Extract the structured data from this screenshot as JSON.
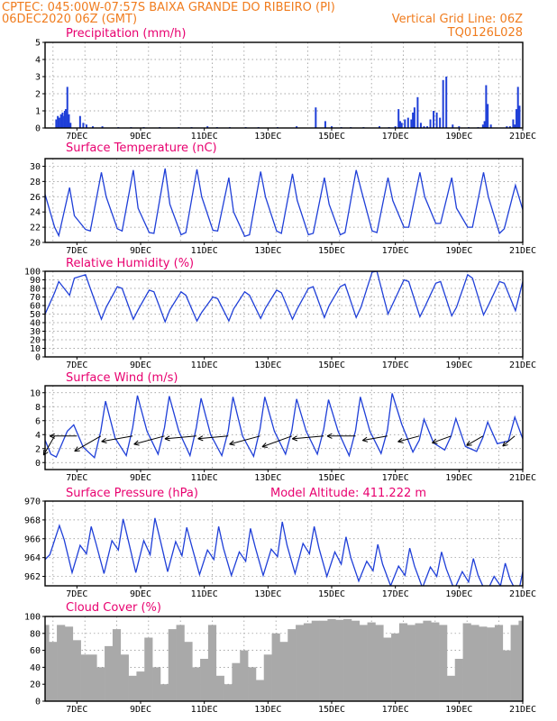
{
  "header": {
    "line1": "CPTEC:   045:00W-07:57S   BAIXA GRANDE DO RIBEIRO (PI)",
    "line2_left": "06DEC2020 06Z (GMT)",
    "line2_right": "Vertical Grid Line: 06Z",
    "line3_right": "TQ0126L028"
  },
  "colors": {
    "header": "#f07c1e",
    "title": "#e8006f",
    "line": "#1f3fd8",
    "bar": "#1f3fd8",
    "cloud": "#a9a9a9"
  },
  "x_axis": {
    "days_range": [
      0,
      15
    ],
    "tick_days": [
      1,
      3,
      5,
      7,
      9,
      11,
      13,
      15
    ],
    "tick_labels": [
      "7DEC",
      "9DEC",
      "11DEC",
      "13DEC",
      "15DEC",
      "17DEC",
      "19DEC",
      "21DEC"
    ],
    "grid": "vertical dotted at 06Z each day"
  },
  "chart_data": [
    {
      "id": "precip",
      "type": "bar",
      "title": "Precipitation (mm/h)",
      "ylim": [
        0,
        5
      ],
      "yticks": [
        0,
        1,
        2,
        3,
        4,
        5
      ],
      "grid": true,
      "x": [
        0.35,
        0.4,
        0.45,
        0.5,
        0.55,
        0.6,
        0.62,
        0.65,
        0.7,
        0.75,
        0.8,
        1.1,
        1.2,
        1.3,
        1.5,
        1.8,
        2.3,
        2.7,
        3.1,
        3.6,
        4.2,
        4.6,
        5.1,
        5.4,
        5.8,
        6.3,
        6.7,
        7.3,
        7.9,
        8.5,
        8.8,
        9.0,
        9.3,
        9.6,
        10.0,
        10.5,
        10.8,
        11.0,
        11.1,
        11.15,
        11.2,
        11.3,
        11.4,
        11.5,
        11.55,
        11.6,
        11.7,
        11.8,
        11.9,
        12.0,
        12.1,
        12.2,
        12.3,
        12.4,
        12.5,
        12.6,
        12.8,
        13.0,
        13.3,
        13.6,
        13.75,
        13.8,
        13.85,
        13.9,
        14.0,
        14.5,
        14.6,
        14.7,
        14.75,
        14.8,
        14.85,
        14.9
      ],
      "values": [
        0.5,
        0.7,
        0.6,
        0.8,
        0.9,
        0.7,
        1.0,
        1.1,
        2.4,
        0.8,
        0.3,
        0.7,
        0.3,
        0.2,
        0.1,
        0.1,
        0.05,
        0.05,
        0.05,
        0.05,
        0.05,
        0.05,
        0.1,
        0.05,
        0.05,
        0.05,
        0.05,
        0.05,
        0.1,
        1.2,
        0.4,
        0.1,
        0.05,
        0.05,
        0.05,
        0.1,
        0.05,
        0.1,
        1.1,
        0.4,
        0.3,
        0.5,
        0.6,
        0.5,
        0.9,
        1.2,
        1.8,
        0.3,
        0.1,
        0.1,
        0.5,
        1.0,
        0.9,
        0.6,
        2.8,
        3.0,
        0.2,
        0.1,
        0.05,
        0.05,
        0.2,
        0.4,
        2.5,
        1.4,
        0.2,
        0.1,
        0.1,
        0.5,
        0.2,
        1.1,
        2.4,
        1.3
      ]
    },
    {
      "id": "temp",
      "type": "line",
      "title": "Surface Temperature (nC)",
      "ylim": [
        20,
        31
      ],
      "yticks": [
        20,
        22,
        24,
        26,
        28,
        30
      ],
      "grid": true,
      "x": [
        0.0,
        0.3,
        0.43,
        0.77,
        0.92,
        1.27,
        1.42,
        1.77,
        1.92,
        2.27,
        2.42,
        2.77,
        2.92,
        3.27,
        3.42,
        3.77,
        3.92,
        4.27,
        4.42,
        4.77,
        4.92,
        5.27,
        5.42,
        5.77,
        5.92,
        6.27,
        6.42,
        6.77,
        6.92,
        7.27,
        7.42,
        7.77,
        7.92,
        8.27,
        8.42,
        8.77,
        8.92,
        9.27,
        9.42,
        9.77,
        9.92,
        10.27,
        10.42,
        10.77,
        10.92,
        11.27,
        11.42,
        11.77,
        11.92,
        12.27,
        12.42,
        12.77,
        12.92,
        13.27,
        13.42,
        13.77,
        13.92,
        14.27,
        14.42,
        14.77,
        15.0
      ],
      "y": [
        26.3,
        22.0,
        20.9,
        27.2,
        23.5,
        21.7,
        21.5,
        29.2,
        26.0,
        21.8,
        21.5,
        29.5,
        24.5,
        21.3,
        21.2,
        29.7,
        25.0,
        21.0,
        21.3,
        29.6,
        26.0,
        21.6,
        21.5,
        28.5,
        24.0,
        20.8,
        21.0,
        29.3,
        26.0,
        21.5,
        21.2,
        29.0,
        25.5,
        21.0,
        21.2,
        28.5,
        25.0,
        21.0,
        21.3,
        29.5,
        27.0,
        21.5,
        21.3,
        28.5,
        25.5,
        22.0,
        22.0,
        29.2,
        26.0,
        22.5,
        22.5,
        28.5,
        24.5,
        22.0,
        22.0,
        29.2,
        26.0,
        21.2,
        21.8,
        27.5,
        24.3
      ]
    },
    {
      "id": "rh",
      "type": "line",
      "title": "Relative Humidity (%)",
      "ylim": [
        0,
        100
      ],
      "yticks": [
        0,
        10,
        20,
        30,
        40,
        50,
        60,
        70,
        80,
        90,
        100
      ],
      "grid": true,
      "x": [
        0.0,
        0.3,
        0.43,
        0.77,
        0.92,
        1.27,
        1.42,
        1.77,
        1.92,
        2.27,
        2.42,
        2.77,
        2.92,
        3.27,
        3.42,
        3.77,
        3.92,
        4.27,
        4.42,
        4.77,
        4.92,
        5.27,
        5.42,
        5.77,
        5.92,
        6.27,
        6.42,
        6.77,
        6.92,
        7.27,
        7.42,
        7.77,
        7.92,
        8.27,
        8.42,
        8.77,
        8.92,
        9.27,
        9.42,
        9.77,
        9.92,
        10.27,
        10.42,
        10.77,
        10.92,
        11.27,
        11.42,
        11.77,
        11.92,
        12.27,
        12.42,
        12.77,
        12.92,
        13.27,
        13.42,
        13.77,
        13.92,
        14.27,
        14.42,
        14.77,
        15.0
      ],
      "y": [
        50,
        75,
        88,
        72,
        92,
        96,
        80,
        44,
        58,
        82,
        80,
        44,
        55,
        78,
        76,
        41,
        55,
        76,
        72,
        42,
        52,
        70,
        68,
        42,
        56,
        76,
        72,
        45,
        57,
        78,
        75,
        44,
        56,
        80,
        82,
        46,
        60,
        82,
        85,
        46,
        58,
        99,
        100,
        50,
        62,
        90,
        88,
        47,
        58,
        86,
        88,
        48,
        58,
        96,
        92,
        49,
        60,
        88,
        86,
        54,
        88
      ]
    },
    {
      "id": "wind",
      "type": "line",
      "title": "Surface Wind (m/s)",
      "ylim": [
        -1,
        11
      ],
      "yticks": [
        0,
        2,
        4,
        6,
        8,
        10
      ],
      "grid": true,
      "x": [
        0.0,
        0.18,
        0.35,
        0.7,
        0.9,
        1.2,
        1.55,
        1.75,
        1.9,
        2.2,
        2.55,
        2.75,
        2.9,
        3.2,
        3.55,
        3.75,
        3.9,
        4.2,
        4.55,
        4.75,
        4.9,
        5.2,
        5.55,
        5.75,
        5.9,
        6.2,
        6.55,
        6.75,
        6.9,
        7.2,
        7.55,
        7.75,
        7.9,
        8.2,
        8.55,
        8.75,
        8.9,
        9.2,
        9.55,
        9.75,
        9.9,
        10.2,
        10.55,
        10.75,
        10.9,
        11.2,
        11.55,
        11.75,
        11.9,
        12.2,
        12.55,
        12.75,
        12.9,
        13.2,
        13.55,
        13.75,
        13.9,
        14.2,
        14.55,
        14.75,
        15.0
      ],
      "y": [
        3.2,
        1.2,
        0.8,
        4.5,
        5.4,
        2.2,
        0.7,
        4.5,
        8.8,
        3.5,
        1.0,
        5.0,
        9.6,
        4.5,
        1.2,
        5.0,
        9.5,
        4.5,
        1.0,
        5.0,
        9.2,
        4.0,
        1.0,
        4.5,
        9.4,
        3.8,
        0.9,
        4.8,
        9.4,
        4.5,
        1.2,
        4.6,
        9.1,
        4.5,
        1.2,
        4.8,
        9.0,
        4.5,
        1.0,
        4.6,
        9.4,
        4.5,
        1.3,
        4.6,
        9.9,
        5.5,
        1.5,
        3.2,
        6.2,
        2.8,
        1.8,
        3.8,
        6.3,
        2.3,
        1.6,
        3.6,
        5.8,
        2.7,
        3.1,
        6.5,
        3.4
      ],
      "arrows_x": [
        0.3,
        1.0,
        1.75,
        2.75,
        3.75,
        4.75,
        5.75,
        6.75,
        7.75,
        8.75,
        9.75,
        10.75,
        11.75,
        12.75,
        13.75,
        14.75
      ],
      "arrows_dir_deg": [
        60,
        0,
        30,
        10,
        15,
        5,
        5,
        15,
        20,
        5,
        0,
        10,
        15,
        20,
        30,
        40
      ],
      "arrows_len": [
        3.5,
        4.3,
        4.8,
        5.0,
        5.0,
        5.0,
        4.8,
        5.0,
        5.0,
        5.0,
        4.5,
        4.0,
        3.5,
        3.2,
        3.0,
        2.5
      ]
    },
    {
      "id": "press",
      "type": "line",
      "title": "Surface Pressure (hPa)",
      "annotation": "Model Altitude: 411.222 m",
      "ylim": [
        961,
        970
      ],
      "yticks": [
        962,
        964,
        966,
        968,
        970
      ],
      "grid": true,
      "x": [
        0.0,
        0.15,
        0.45,
        0.6,
        0.85,
        1.1,
        1.3,
        1.45,
        1.6,
        1.85,
        2.1,
        2.3,
        2.45,
        2.6,
        2.85,
        3.1,
        3.3,
        3.45,
        3.6,
        3.85,
        4.1,
        4.3,
        4.45,
        4.6,
        4.85,
        5.1,
        5.3,
        5.45,
        5.6,
        5.85,
        6.1,
        6.3,
        6.45,
        6.6,
        6.85,
        7.1,
        7.3,
        7.45,
        7.6,
        7.85,
        8.1,
        8.3,
        8.45,
        8.6,
        8.85,
        9.1,
        9.3,
        9.45,
        9.6,
        9.85,
        10.1,
        10.3,
        10.45,
        10.6,
        10.85,
        11.1,
        11.3,
        11.45,
        11.6,
        11.85,
        12.1,
        12.3,
        12.45,
        12.6,
        12.85,
        13.1,
        13.3,
        13.45,
        13.6,
        13.85,
        14.1,
        14.3,
        14.45,
        14.6,
        14.85,
        15.0
      ],
      "y": [
        963.8,
        964.3,
        967.4,
        965.9,
        962.4,
        965.3,
        964.4,
        967.3,
        965.5,
        962.3,
        965.8,
        964.8,
        968.1,
        966.0,
        962.4,
        965.8,
        964.3,
        968.2,
        966.1,
        962.5,
        965.7,
        964.2,
        967.2,
        965.3,
        962.2,
        964.8,
        963.8,
        967.3,
        965.0,
        962.1,
        964.6,
        963.6,
        967.1,
        965.1,
        962.1,
        964.9,
        964.1,
        967.8,
        965.3,
        962.3,
        965.5,
        964.4,
        967.3,
        965.0,
        962.0,
        964.6,
        963.3,
        966.2,
        964.0,
        961.5,
        963.6,
        962.6,
        965.4,
        963.3,
        961.0,
        963.1,
        962.1,
        965.0,
        963.1,
        960.8,
        963.0,
        962.0,
        964.6,
        962.8,
        960.6,
        962.5,
        961.4,
        963.9,
        962.1,
        960.2,
        962.0,
        961.0,
        963.4,
        961.7,
        960.0,
        962.5
      ]
    },
    {
      "id": "cloud",
      "type": "bar",
      "title": "Cloud Cover (%)",
      "ylim": [
        0,
        100
      ],
      "yticks": [
        0,
        20,
        40,
        60,
        80,
        100
      ],
      "grid": true,
      "x": [
        0.0,
        0.25,
        0.5,
        0.75,
        1.0,
        1.25,
        1.5,
        1.75,
        2.0,
        2.25,
        2.5,
        2.75,
        3.0,
        3.25,
        3.5,
        3.75,
        4.0,
        4.25,
        4.5,
        4.75,
        5.0,
        5.25,
        5.5,
        5.75,
        6.0,
        6.25,
        6.5,
        6.75,
        7.0,
        7.25,
        7.5,
        7.75,
        8.0,
        8.25,
        8.5,
        8.75,
        9.0,
        9.25,
        9.5,
        9.75,
        10.0,
        10.25,
        10.5,
        10.75,
        11.0,
        11.25,
        11.5,
        11.75,
        12.0,
        12.25,
        12.5,
        12.75,
        13.0,
        13.25,
        13.5,
        13.75,
        14.0,
        14.25,
        14.5,
        14.75,
        15.0
      ],
      "values": [
        90,
        70,
        90,
        88,
        72,
        55,
        55,
        40,
        65,
        85,
        55,
        30,
        35,
        75,
        40,
        20,
        85,
        90,
        70,
        40,
        50,
        90,
        30,
        20,
        45,
        60,
        40,
        25,
        55,
        80,
        70,
        85,
        90,
        92,
        95,
        95,
        97,
        96,
        97,
        95,
        90,
        93,
        90,
        75,
        80,
        92,
        90,
        92,
        95,
        93,
        90,
        30,
        50,
        92,
        90,
        88,
        87,
        90,
        60,
        90,
        95
      ]
    }
  ]
}
